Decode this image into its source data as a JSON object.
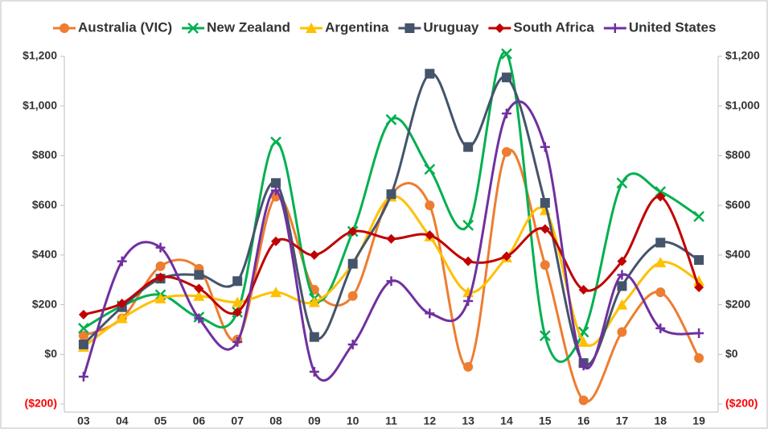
{
  "chart_data": {
    "type": "line",
    "categories": [
      "03",
      "04",
      "05",
      "06",
      "07",
      "08",
      "09",
      "10",
      "11",
      "12",
      "13",
      "14",
      "15",
      "16",
      "17",
      "18",
      "19"
    ],
    "series": [
      {
        "name": "Australia (VIC)",
        "color": "#ed7d31",
        "marker": "circle",
        "values": [
          75,
          145,
          355,
          345,
          60,
          635,
          260,
          235,
          645,
          600,
          -50,
          815,
          360,
          -185,
          90,
          250,
          -15
        ]
      },
      {
        "name": "New Zealand",
        "color": "#00b050",
        "marker": "x",
        "values": [
          105,
          195,
          240,
          150,
          170,
          855,
          225,
          495,
          945,
          745,
          520,
          1210,
          75,
          90,
          690,
          655,
          555
        ]
      },
      {
        "name": "Argentina",
        "color": "#ffc000",
        "marker": "triangle",
        "values": [
          30,
          145,
          225,
          235,
          210,
          250,
          210,
          365,
          635,
          475,
          250,
          390,
          580,
          50,
          200,
          370,
          295
        ]
      },
      {
        "name": "Uruguay",
        "color": "#44546a",
        "marker": "square",
        "values": [
          40,
          190,
          305,
          320,
          295,
          690,
          70,
          365,
          645,
          1130,
          835,
          1115,
          610,
          -35,
          275,
          450,
          380
        ]
      },
      {
        "name": "South Africa",
        "color": "#c00000",
        "marker": "diamond",
        "values": [
          160,
          205,
          310,
          265,
          170,
          455,
          400,
          495,
          465,
          480,
          375,
          395,
          505,
          260,
          375,
          635,
          270
        ]
      },
      {
        "name": "United States",
        "color": "#7030a0",
        "marker": "plus",
        "values": [
          -90,
          375,
          430,
          145,
          50,
          660,
          -70,
          40,
          295,
          165,
          215,
          970,
          835,
          -45,
          320,
          105,
          85
        ]
      }
    ],
    "ylim": [
      -200,
      1200
    ],
    "yticks": [
      {
        "value": -200,
        "label": "($200)"
      },
      {
        "value": 0,
        "label": "$0"
      },
      {
        "value": 200,
        "label": "$200"
      },
      {
        "value": 400,
        "label": "$400"
      },
      {
        "value": 600,
        "label": "$600"
      },
      {
        "value": 800,
        "label": "$800"
      },
      {
        "value": 1000,
        "label": "$1,000"
      },
      {
        "value": 1200,
        "label": "$1,200"
      }
    ],
    "negative_tick_color": "#ff0000",
    "smooth": true,
    "legend": "top"
  }
}
